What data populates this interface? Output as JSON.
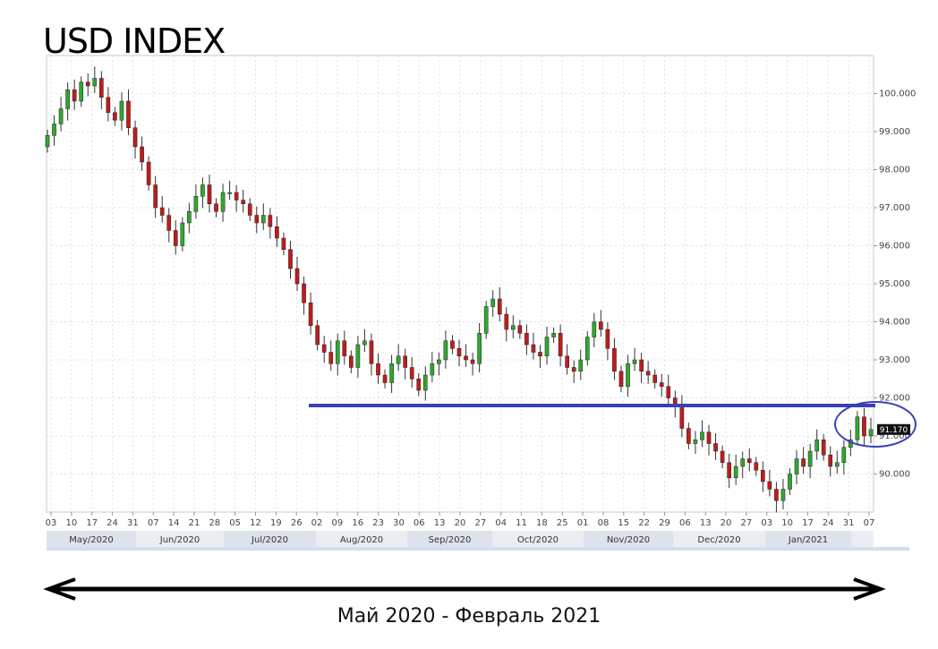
{
  "title": "USD INDEX",
  "caption": "Май 2020 - Февраль 2021",
  "colors": {
    "up": "#2fa82f",
    "down": "#c01c1c",
    "support_line": "#3a3fb8",
    "circle": "#3a3fb8",
    "grid": "#e2e2e2",
    "month_band_a": "#dde3ec",
    "month_band_b": "#eaeef3",
    "arrow": "#000000",
    "last_price_bg": "#111111"
  },
  "chart_data": {
    "type": "candlestick",
    "title": "USD INDEX",
    "ylim": [
      89.0,
      101.0
    ],
    "y_ticks": [
      "90.000",
      "91.000",
      "92.000",
      "93.000",
      "94.000",
      "95.000",
      "96.000",
      "97.000",
      "98.000",
      "99.000",
      "100.000"
    ],
    "x_ticks": [
      "03",
      "10",
      "17",
      "24",
      "31",
      "07",
      "14",
      "21",
      "28",
      "05",
      "12",
      "19",
      "26",
      "02",
      "09",
      "16",
      "23",
      "30",
      "06",
      "13",
      "20",
      "27",
      "04",
      "11",
      "18",
      "25",
      "01",
      "08",
      "15",
      "22",
      "29",
      "06",
      "13",
      "20",
      "27",
      "03",
      "10",
      "17",
      "24",
      "31",
      "07"
    ],
    "months": [
      "May/2020",
      "Jun/2020",
      "Jul/2020",
      "Aug/2020",
      "Sep/2020",
      "Oct/2020",
      "Nov/2020",
      "Dec/2020",
      "Jan/2021",
      ""
    ],
    "last_price": "91.170",
    "support_level": 91.8,
    "grid": true,
    "closes": [
      98.9,
      99.2,
      99.6,
      100.1,
      99.8,
      100.3,
      100.2,
      100.4,
      99.9,
      99.5,
      99.3,
      99.8,
      99.1,
      98.6,
      98.2,
      97.6,
      97.0,
      96.8,
      96.4,
      96.0,
      96.6,
      96.9,
      97.3,
      97.6,
      97.1,
      96.9,
      97.4,
      97.4,
      97.2,
      97.1,
      96.8,
      96.6,
      96.8,
      96.5,
      96.2,
      95.9,
      95.4,
      95.0,
      94.5,
      93.9,
      93.4,
      93.2,
      92.9,
      93.5,
      93.1,
      92.8,
      93.4,
      93.5,
      92.9,
      92.6,
      92.4,
      92.9,
      93.1,
      92.8,
      92.5,
      92.2,
      92.6,
      92.9,
      93.0,
      93.5,
      93.3,
      93.1,
      93.0,
      92.9,
      93.7,
      94.4,
      94.6,
      94.2,
      93.8,
      93.9,
      93.7,
      93.4,
      93.2,
      93.1,
      93.6,
      93.7,
      93.1,
      92.8,
      92.7,
      93.0,
      93.6,
      94.0,
      93.8,
      93.3,
      92.7,
      92.3,
      92.9,
      93.0,
      92.7,
      92.6,
      92.4,
      92.3,
      92.0,
      91.8,
      91.2,
      90.8,
      90.9,
      91.1,
      90.8,
      90.6,
      90.3,
      89.9,
      90.2,
      90.4,
      90.3,
      90.1,
      89.8,
      89.6,
      89.3,
      89.6,
      90.0,
      90.4,
      90.2,
      90.6,
      90.9,
      90.5,
      90.2,
      90.3,
      90.7,
      90.9,
      91.5,
      91.0,
      91.17
    ]
  }
}
